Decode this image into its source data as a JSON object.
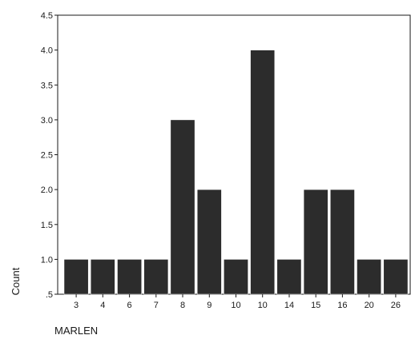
{
  "chart_data": {
    "type": "bar",
    "title": "",
    "xlabel": "MARLEN",
    "ylabel": "Count",
    "categories": [
      "3",
      "4",
      "6",
      "7",
      "8",
      "9",
      "10",
      "10",
      "14",
      "15",
      "16",
      "20",
      "26"
    ],
    "values": [
      1,
      1,
      1,
      1,
      3,
      2,
      1,
      4,
      1,
      2,
      2,
      1,
      1
    ],
    "ylim": [
      0.5,
      4.5
    ],
    "yticks": [
      ".5",
      "1.0",
      "1.5",
      "2.0",
      "2.5",
      "3.0",
      "3.5",
      "4.0",
      "4.5"
    ],
    "grid": false,
    "legend": "none",
    "colors": {
      "bar_fill": "#2c2c2c",
      "bar_edge": "#ffffff",
      "axis": "#1a1a1a",
      "background": "#ffffff"
    }
  }
}
